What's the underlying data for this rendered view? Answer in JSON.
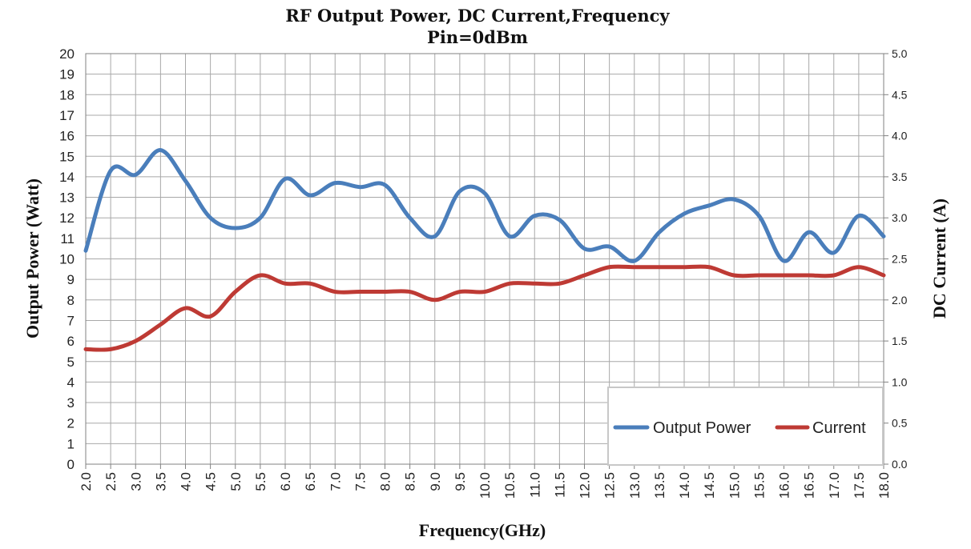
{
  "chart_data": {
    "type": "line",
    "title": "RF Output Power, DC Current,Frequency",
    "subtitle": "Pin=0dBm",
    "xlabel": "Frequency(GHz)",
    "ylabel": "Output Power (Watt)",
    "y2label": "DC Current (A)",
    "xlim": [
      2.0,
      18.0
    ],
    "ylim": [
      0,
      20
    ],
    "y2lim": [
      0.0,
      5.0
    ],
    "x_ticks": [
      "2.0",
      "2.5",
      "3.0",
      "3.5",
      "4.0",
      "4.5",
      "5.0",
      "5.5",
      "6.0",
      "6.5",
      "7.0",
      "7.5",
      "8.0",
      "8.5",
      "9.0",
      "9.5",
      "10.0",
      "10.5",
      "11.0",
      "11.5",
      "12.0",
      "12.5",
      "13.0",
      "13.5",
      "14.0",
      "14.5",
      "15.0",
      "15.5",
      "16.0",
      "16.5",
      "17.0",
      "17.5",
      "18.0"
    ],
    "y_ticks": [
      "0",
      "1",
      "2",
      "3",
      "4",
      "5",
      "6",
      "7",
      "8",
      "9",
      "10",
      "11",
      "12",
      "13",
      "14",
      "15",
      "16",
      "17",
      "18",
      "19",
      "20"
    ],
    "y2_ticks": [
      "0.0",
      "0.5",
      "1.0",
      "1.5",
      "2.0",
      "2.5",
      "3.0",
      "3.5",
      "4.0",
      "4.5",
      "5.0"
    ],
    "grid": true,
    "legend_position": "bottom-right",
    "x": [
      2.0,
      2.5,
      3.0,
      3.5,
      4.0,
      4.5,
      5.0,
      5.5,
      6.0,
      6.5,
      7.0,
      7.5,
      8.0,
      8.5,
      9.0,
      9.5,
      10.0,
      10.5,
      11.0,
      11.5,
      12.0,
      12.5,
      13.0,
      13.5,
      14.0,
      14.5,
      15.0,
      15.5,
      16.0,
      16.5,
      17.0,
      17.5,
      18.0
    ],
    "series": [
      {
        "name": "Output Power",
        "axis": "left",
        "color": "#4a7ebb",
        "values": [
          10.4,
          14.3,
          14.1,
          15.3,
          13.8,
          12.0,
          11.5,
          12.0,
          13.9,
          13.1,
          13.7,
          13.5,
          13.6,
          12.0,
          11.1,
          13.3,
          13.2,
          11.1,
          12.1,
          11.9,
          10.5,
          10.6,
          9.9,
          11.3,
          12.2,
          12.6,
          12.9,
          12.1,
          9.9,
          11.3,
          10.3,
          12.1,
          11.1
        ]
      },
      {
        "name": "Current",
        "axis": "right",
        "color": "#be3a34",
        "values": [
          1.4,
          1.4,
          1.5,
          1.7,
          1.9,
          1.8,
          2.1,
          2.3,
          2.2,
          2.2,
          2.1,
          2.1,
          2.1,
          2.1,
          2.0,
          2.1,
          2.1,
          2.2,
          2.2,
          2.2,
          2.3,
          2.4,
          2.4,
          2.4,
          2.4,
          2.4,
          2.3,
          2.3,
          2.3,
          2.3,
          2.3,
          2.4,
          2.3
        ]
      }
    ]
  }
}
